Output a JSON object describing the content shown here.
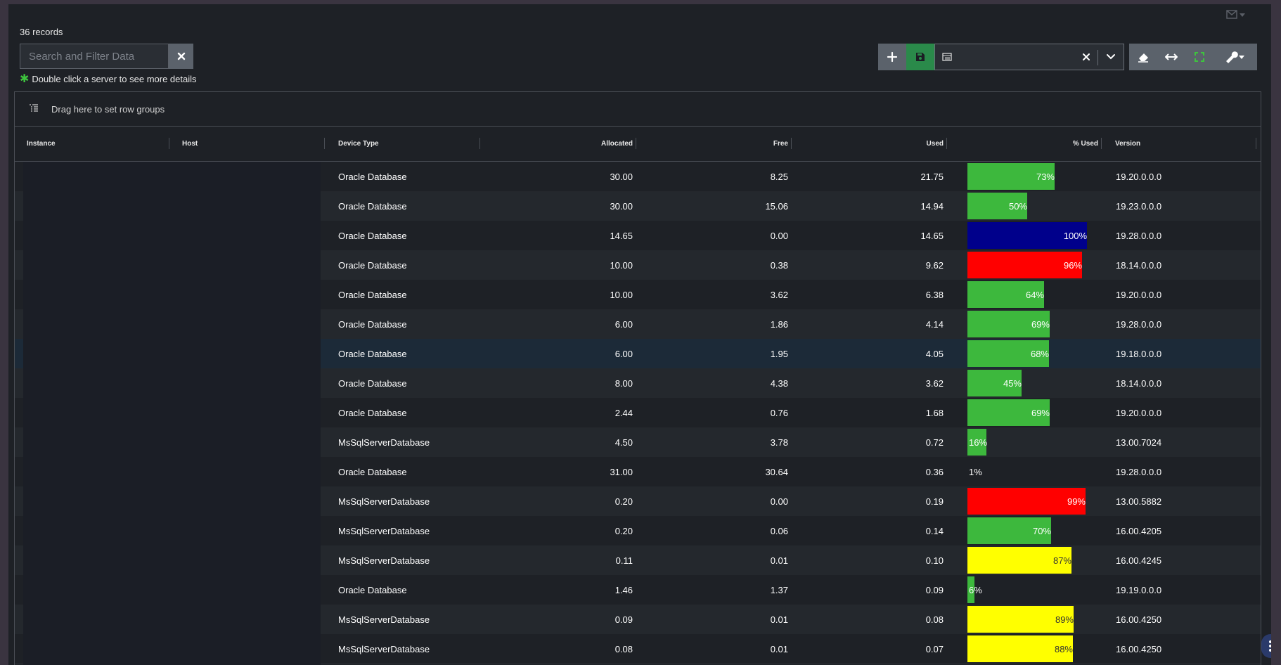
{
  "header": {
    "records_label": "36 records",
    "search_placeholder": "Search and Filter Data",
    "hint_text": "Double click a server to see more details"
  },
  "toolbar": {
    "view_select_value": "",
    "icons": [
      "add-icon",
      "save-icon",
      "grid-view-icon",
      "clear-icon",
      "chevron-down-icon",
      "eraser-icon",
      "fit-columns-icon",
      "expand-icon",
      "wrench-icon"
    ]
  },
  "group_panel": {
    "label": "Drag here to set row groups"
  },
  "columns": [
    "Instance",
    "Host",
    "Device Type",
    "Allocated",
    "Free",
    "Used",
    "% Used",
    "Version"
  ],
  "colors": {
    "ok": "#3db83d",
    "warn": "#ffff00",
    "critical": "#ff0000",
    "full": "#00008b"
  },
  "rows": [
    {
      "device_type": "Oracle Database",
      "allocated": "30.00",
      "free": "8.25",
      "used": "21.75",
      "pct": 73,
      "pct_label": "73%",
      "status": "ok",
      "version": "19.20.0.0.0"
    },
    {
      "device_type": "Oracle Database",
      "allocated": "30.00",
      "free": "15.06",
      "used": "14.94",
      "pct": 50,
      "pct_label": "50%",
      "status": "ok",
      "version": "19.23.0.0.0"
    },
    {
      "device_type": "Oracle Database",
      "allocated": "14.65",
      "free": "0.00",
      "used": "14.65",
      "pct": 100,
      "pct_label": "100%",
      "status": "full",
      "version": "19.28.0.0.0"
    },
    {
      "device_type": "Oracle Database",
      "allocated": "10.00",
      "free": "0.38",
      "used": "9.62",
      "pct": 96,
      "pct_label": "96%",
      "status": "critical",
      "version": "18.14.0.0.0"
    },
    {
      "device_type": "Oracle Database",
      "allocated": "10.00",
      "free": "3.62",
      "used": "6.38",
      "pct": 64,
      "pct_label": "64%",
      "status": "ok",
      "version": "19.20.0.0.0"
    },
    {
      "device_type": "Oracle Database",
      "allocated": "6.00",
      "free": "1.86",
      "used": "4.14",
      "pct": 69,
      "pct_label": "69%",
      "status": "ok",
      "version": "19.28.0.0.0"
    },
    {
      "device_type": "Oracle Database",
      "allocated": "6.00",
      "free": "1.95",
      "used": "4.05",
      "pct": 68,
      "pct_label": "68%",
      "status": "ok",
      "version": "19.18.0.0.0"
    },
    {
      "device_type": "Oracle Database",
      "allocated": "8.00",
      "free": "4.38",
      "used": "3.62",
      "pct": 45,
      "pct_label": "45%",
      "status": "ok",
      "version": "18.14.0.0.0"
    },
    {
      "device_type": "Oracle Database",
      "allocated": "2.44",
      "free": "0.76",
      "used": "1.68",
      "pct": 69,
      "pct_label": "69%",
      "status": "ok",
      "version": "19.20.0.0.0"
    },
    {
      "device_type": "MsSqlServerDatabase",
      "allocated": "4.50",
      "free": "3.78",
      "used": "0.72",
      "pct": 16,
      "pct_label": "16%",
      "status": "ok",
      "version": "13.00.7024"
    },
    {
      "device_type": "Oracle Database",
      "allocated": "31.00",
      "free": "30.64",
      "used": "0.36",
      "pct": 1,
      "pct_label": "1%",
      "status": "ok",
      "version": "19.28.0.0.0"
    },
    {
      "device_type": "MsSqlServerDatabase",
      "allocated": "0.20",
      "free": "0.00",
      "used": "0.19",
      "pct": 99,
      "pct_label": "99%",
      "status": "critical",
      "version": "13.00.5882"
    },
    {
      "device_type": "MsSqlServerDatabase",
      "allocated": "0.20",
      "free": "0.06",
      "used": "0.14",
      "pct": 70,
      "pct_label": "70%",
      "status": "ok",
      "version": "16.00.4205"
    },
    {
      "device_type": "MsSqlServerDatabase",
      "allocated": "0.11",
      "free": "0.01",
      "used": "0.10",
      "pct": 87,
      "pct_label": "87%",
      "status": "warn",
      "version": "16.00.4245"
    },
    {
      "device_type": "Oracle Database",
      "allocated": "1.46",
      "free": "1.37",
      "used": "0.09",
      "pct": 6,
      "pct_label": "6%",
      "status": "ok",
      "version": "19.19.0.0.0"
    },
    {
      "device_type": "MsSqlServerDatabase",
      "allocated": "0.09",
      "free": "0.01",
      "used": "0.08",
      "pct": 89,
      "pct_label": "89%",
      "status": "warn",
      "version": "16.00.4250"
    },
    {
      "device_type": "MsSqlServerDatabase",
      "allocated": "0.08",
      "free": "0.01",
      "used": "0.07",
      "pct": 88,
      "pct_label": "88%",
      "status": "warn",
      "version": "16.00.4250"
    }
  ]
}
